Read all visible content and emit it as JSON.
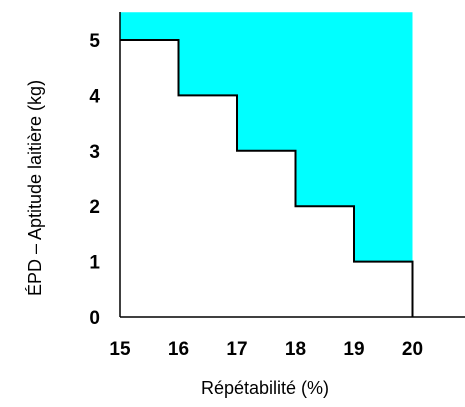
{
  "chart_data": {
    "type": "area",
    "xlabel": "Répétabilité (%)",
    "ylabel": "ÉPD – Aptitude laitière (kg)",
    "x_ticks": [
      "15",
      "16",
      "17",
      "18",
      "19",
      "20"
    ],
    "y_ticks": [
      "0",
      "1",
      "2",
      "3",
      "4",
      "5"
    ],
    "xlim": [
      15,
      20.9
    ],
    "ylim": [
      0,
      5.5
    ],
    "fill_color": "#00FFFF",
    "line_color": "#000000",
    "grid": false,
    "legend": "none",
    "series": [
      {
        "step_points": [
          [
            15,
            5
          ],
          [
            16,
            5
          ],
          [
            16,
            4
          ],
          [
            17,
            4
          ],
          [
            17,
            3
          ],
          [
            18,
            3
          ],
          [
            18,
            2
          ],
          [
            19,
            2
          ],
          [
            19,
            1
          ],
          [
            20,
            1
          ],
          [
            20,
            0
          ]
        ],
        "shaded_region": {
          "x_range": [
            15,
            20
          ],
          "y_top": 5.5,
          "bounded_below_by": "step_points"
        }
      }
    ]
  }
}
